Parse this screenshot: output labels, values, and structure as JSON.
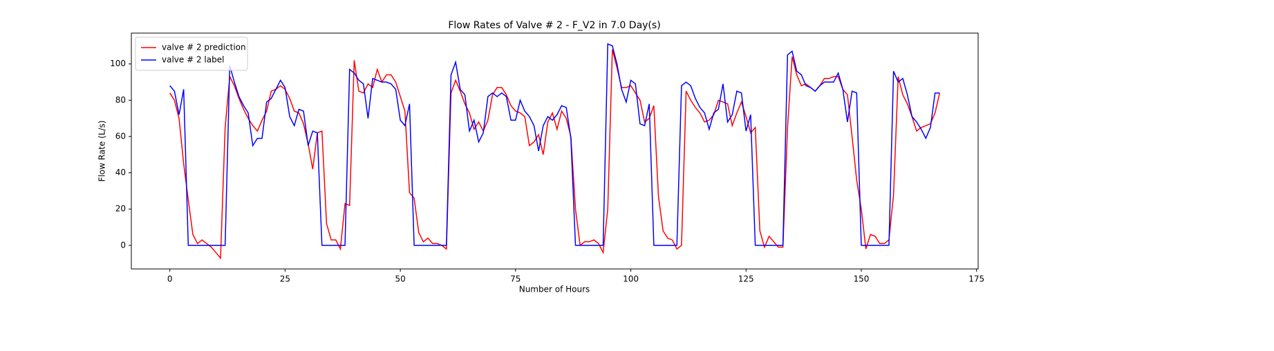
{
  "chart_data": {
    "type": "line",
    "title": "Flow Rates of Valve # 2 - F_V2 in 7.0 Day(s)",
    "xlabel": "Number of Hours",
    "ylabel": "Flow Rate (L/s)",
    "x": [
      0,
      1,
      2,
      3,
      4,
      5,
      6,
      7,
      8,
      9,
      10,
      11,
      12,
      13,
      14,
      15,
      16,
      17,
      18,
      19,
      20,
      21,
      22,
      23,
      24,
      25,
      26,
      27,
      28,
      29,
      30,
      31,
      32,
      33,
      34,
      35,
      36,
      37,
      38,
      39,
      40,
      41,
      42,
      43,
      44,
      45,
      46,
      47,
      48,
      49,
      50,
      51,
      52,
      53,
      54,
      55,
      56,
      57,
      58,
      59,
      60,
      61,
      62,
      63,
      64,
      65,
      66,
      67,
      68,
      69,
      70,
      71,
      72,
      73,
      74,
      75,
      76,
      77,
      78,
      79,
      80,
      81,
      82,
      83,
      84,
      85,
      86,
      87,
      88,
      89,
      90,
      91,
      92,
      93,
      94,
      95,
      96,
      97,
      98,
      99,
      100,
      101,
      102,
      103,
      104,
      105,
      106,
      107,
      108,
      109,
      110,
      111,
      112,
      113,
      114,
      115,
      116,
      117,
      118,
      119,
      120,
      121,
      122,
      123,
      124,
      125,
      126,
      127,
      128,
      129,
      130,
      131,
      132,
      133,
      134,
      135,
      136,
      137,
      138,
      139,
      140,
      141,
      142,
      143,
      144,
      145,
      146,
      147,
      148,
      149,
      150,
      151,
      152,
      153,
      154,
      155,
      156,
      157,
      158,
      159,
      160,
      161,
      162,
      163,
      164,
      165,
      166,
      167
    ],
    "series": [
      {
        "name": "valve # 2 prediction",
        "color": "#ff0000",
        "values": [
          84,
          80,
          70,
          45,
          25,
          6,
          1,
          3,
          1,
          -1,
          -4,
          -7,
          65,
          93,
          88,
          81,
          75,
          70,
          66,
          63,
          69,
          74,
          85,
          86,
          88,
          86,
          81,
          74,
          73,
          67,
          56,
          42,
          62,
          63,
          12,
          3,
          3,
          -2,
          23,
          22,
          102,
          85,
          84,
          89,
          87,
          97,
          90,
          94,
          94,
          90,
          82,
          74,
          29,
          26,
          7,
          2,
          4,
          1,
          1,
          0,
          -2,
          84,
          91,
          85,
          78,
          73,
          64,
          68,
          63,
          69,
          83,
          87,
          87,
          83,
          77,
          74,
          73,
          71,
          55,
          57,
          61,
          50,
          68,
          73,
          64,
          74,
          70,
          60,
          20,
          0,
          2,
          2,
          3,
          1,
          -4,
          20,
          108,
          98,
          87,
          87,
          88,
          84,
          80,
          68,
          70,
          77,
          27,
          8,
          4,
          3,
          -2,
          0,
          85,
          80,
          76,
          73,
          68,
          69,
          72,
          80,
          79,
          78,
          66,
          73,
          79,
          71,
          62,
          65,
          8,
          -1,
          5,
          2,
          -1,
          -1,
          65,
          104,
          94,
          88,
          89,
          87,
          85,
          88,
          92,
          92,
          93,
          93,
          86,
          83,
          60,
          36,
          20,
          -2,
          6,
          5,
          1,
          1,
          3,
          28,
          93,
          83,
          78,
          71,
          63,
          65,
          66,
          67,
          73,
          84
        ]
      },
      {
        "name": "valve # 2 label",
        "color": "#0000ff",
        "values": [
          88,
          85,
          72,
          86,
          0,
          0,
          0,
          0,
          0,
          0,
          0,
          0,
          0,
          99,
          90,
          82,
          77,
          73,
          55,
          59,
          59,
          79,
          81,
          86,
          91,
          87,
          71,
          66,
          75,
          74,
          55,
          63,
          62,
          0,
          0,
          0,
          0,
          0,
          0,
          97,
          95,
          91,
          89,
          70,
          92,
          91,
          90,
          90,
          89,
          86,
          69,
          66,
          78,
          0,
          0,
          0,
          0,
          0,
          0,
          0,
          0,
          94,
          101,
          86,
          83,
          63,
          69,
          57,
          62,
          82,
          84,
          82,
          84,
          82,
          69,
          69,
          80,
          74,
          71,
          66,
          52,
          66,
          71,
          69,
          72,
          77,
          76,
          59,
          0,
          0,
          0,
          0,
          0,
          0,
          0,
          111,
          110,
          100,
          86,
          79,
          91,
          89,
          67,
          66,
          78,
          0,
          0,
          0,
          0,
          0,
          0,
          88,
          90,
          88,
          81,
          76,
          73,
          64,
          73,
          75,
          89,
          68,
          72,
          85,
          84,
          63,
          72,
          0,
          0,
          0,
          0,
          0,
          0,
          0,
          105,
          107,
          96,
          94,
          88,
          87,
          85,
          88,
          90,
          90,
          90,
          95,
          86,
          68,
          85,
          84,
          0,
          0,
          0,
          0,
          0,
          0,
          0,
          96,
          90,
          92,
          83,
          71,
          68,
          64,
          59,
          65,
          84,
          84
        ]
      }
    ],
    "xlim": [
      -8.35,
      175.35
    ],
    "xticks": [
      0,
      25,
      50,
      75,
      100,
      125,
      150,
      175
    ],
    "ylim": [
      -13,
      117
    ],
    "yticks": [
      0,
      20,
      40,
      60,
      80,
      100
    ],
    "legend": "upper left",
    "grid": false
  }
}
